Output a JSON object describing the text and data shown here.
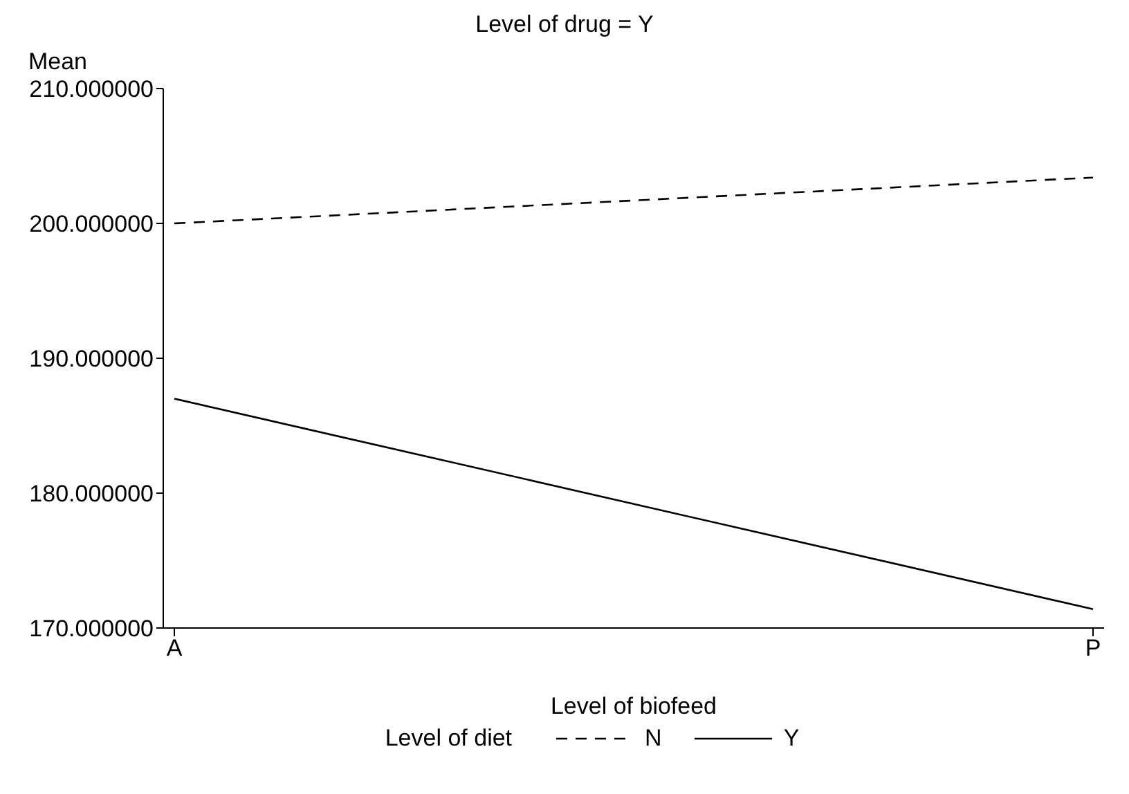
{
  "chart_data": {
    "type": "line",
    "title": "Level of drug = Y",
    "xlabel": "Level of biofeed",
    "ylabel": "Mean",
    "legend_title": "Level of diet",
    "categories": [
      "A",
      "P"
    ],
    "series": [
      {
        "name": "N",
        "color": "#000000",
        "line_style": "dashed",
        "values": [
          200.0,
          203.4
        ]
      },
      {
        "name": "Y",
        "color": "#000000",
        "line_style": "solid",
        "values": [
          187.0,
          171.4
        ]
      }
    ],
    "ylim": [
      170,
      210
    ],
    "yticks": [
      {
        "value": 170,
        "label": "170.000000"
      },
      {
        "value": 180,
        "label": "180.000000"
      },
      {
        "value": 190,
        "label": "190.000000"
      },
      {
        "value": 200,
        "label": "200.000000"
      },
      {
        "value": 210,
        "label": "210.000000"
      }
    ],
    "grid": false,
    "legend": "bottom",
    "marker": "none"
  }
}
